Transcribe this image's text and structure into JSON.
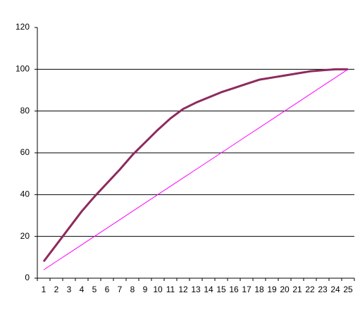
{
  "chart_data": {
    "type": "line",
    "categories": [
      "1",
      "2",
      "3",
      "4",
      "5",
      "6",
      "7",
      "8",
      "9",
      "10",
      "11",
      "12",
      "13",
      "14",
      "15",
      "16",
      "17",
      "18",
      "19",
      "20",
      "21",
      "22",
      "23",
      "24",
      "25"
    ],
    "series": [
      {
        "color": "#8e2a5e",
        "width": 3,
        "values": [
          8,
          16,
          24,
          32,
          39,
          45.5,
          52,
          59,
          65,
          71,
          76.5,
          81,
          84,
          86.5,
          89,
          91,
          93,
          95,
          96,
          97,
          98,
          99,
          99.5,
          100,
          100
        ]
      },
      {
        "color": "#ff00ff",
        "width": 1,
        "values": [
          4,
          8,
          12,
          16,
          20,
          24,
          28,
          32,
          36,
          40,
          44,
          48,
          52,
          56,
          60,
          64,
          68,
          72,
          76,
          80,
          84,
          88,
          92,
          96,
          100
        ]
      }
    ],
    "ylim": [
      0,
      120
    ],
    "yticks": [
      0,
      20,
      40,
      60,
      80,
      100,
      120
    ],
    "grid": true
  }
}
